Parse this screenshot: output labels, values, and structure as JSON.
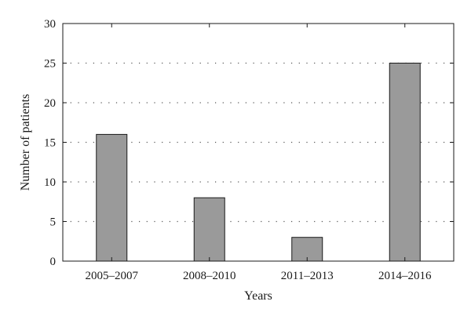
{
  "chart_data": {
    "type": "bar",
    "categories": [
      "2005–2007",
      "2008–2010",
      "2011–2013",
      "2014–2016"
    ],
    "values": [
      16,
      8,
      3,
      25
    ],
    "title": "",
    "xlabel": "Years",
    "ylabel": "Number of patients",
    "ylim": [
      0,
      30
    ],
    "yticks": [
      0,
      5,
      10,
      15,
      20,
      25,
      30
    ],
    "grid": true,
    "grid_style": "dotted",
    "colors": {
      "bar_fill": "#9a9a9a",
      "bar_stroke": "#1a1a1a",
      "axis": "#1a1a1a",
      "grid": "#555555"
    }
  }
}
